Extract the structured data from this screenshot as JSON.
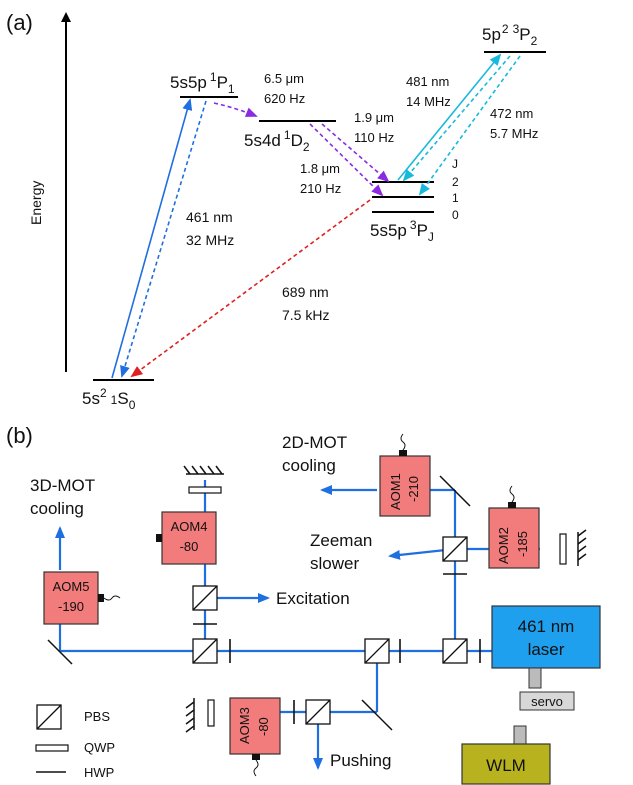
{
  "panel_a": {
    "label": "(a)",
    "axis_label": "Energy",
    "levels": {
      "ground": {
        "main": "5s",
        "sup": "2",
        "sup2": "1",
        "state": "S",
        "sub": "0"
      },
      "p1": {
        "main": "5s5p",
        "sup": "1",
        "state": "P",
        "sub": "1"
      },
      "d2": {
        "main": "5s4d",
        "sup": "1",
        "state": "D",
        "sub": "2"
      },
      "pj": {
        "main": "5s5p",
        "sup": "3",
        "state": "P",
        "sub": "J"
      },
      "p2": {
        "main": "5p",
        "sup": "2",
        "sup2": "3",
        "state": "P",
        "sub": "2"
      }
    },
    "j_labels": [
      "J",
      "2",
      "1",
      "0"
    ],
    "transitions": {
      "blue_461": {
        "line1": "461 nm",
        "line2": "32 MHz",
        "color": "#1f6fe0"
      },
      "d2_decay": {
        "line1": "6.5 μm",
        "line2": "620 Hz",
        "color": "#8a2be2"
      },
      "d2_to_pj_a": {
        "line1": "1.9 μm",
        "line2": "110 Hz"
      },
      "d2_to_pj_b": {
        "line1": "1.8 μm",
        "line2": "210 Hz"
      },
      "cyan_481": {
        "line1": "481 nm",
        "line2": "14 MHz",
        "color": "#18b9dc"
      },
      "cyan_472": {
        "line1": "472 nm",
        "line2": "5.7 MHz"
      },
      "red_689": {
        "line1": "689 nm",
        "line2": "7.5 kHz",
        "color": "#e02020"
      }
    }
  },
  "panel_b": {
    "label": "(b)",
    "laser": {
      "line1": "461 nm",
      "line2": "laser",
      "color": "#1fa0ee"
    },
    "servo": "servo",
    "wlm": "WLM",
    "wlm_color": "#b8b21f",
    "aom_color": "#f27b7b",
    "beam_color": "#1f6fe0",
    "aoms": [
      {
        "name": "AOM1",
        "freq": "-210"
      },
      {
        "name": "AOM2",
        "freq": "-185"
      },
      {
        "name": "AOM3",
        "freq": "-80"
      },
      {
        "name": "AOM4",
        "freq": "-80"
      },
      {
        "name": "AOM5",
        "freq": "-190"
      }
    ],
    "outputs": {
      "mot2d": {
        "line1": "2D-MOT",
        "line2": "cooling"
      },
      "mot3d": {
        "line1": "3D-MOT",
        "line2": "cooling"
      },
      "zeeman": {
        "line1": "Zeeman",
        "line2": "slower"
      },
      "excitation": "Excitation",
      "pushing": "Pushing"
    },
    "legend": {
      "pbs": "PBS",
      "qwp": "QWP",
      "hwp": "HWP"
    }
  }
}
